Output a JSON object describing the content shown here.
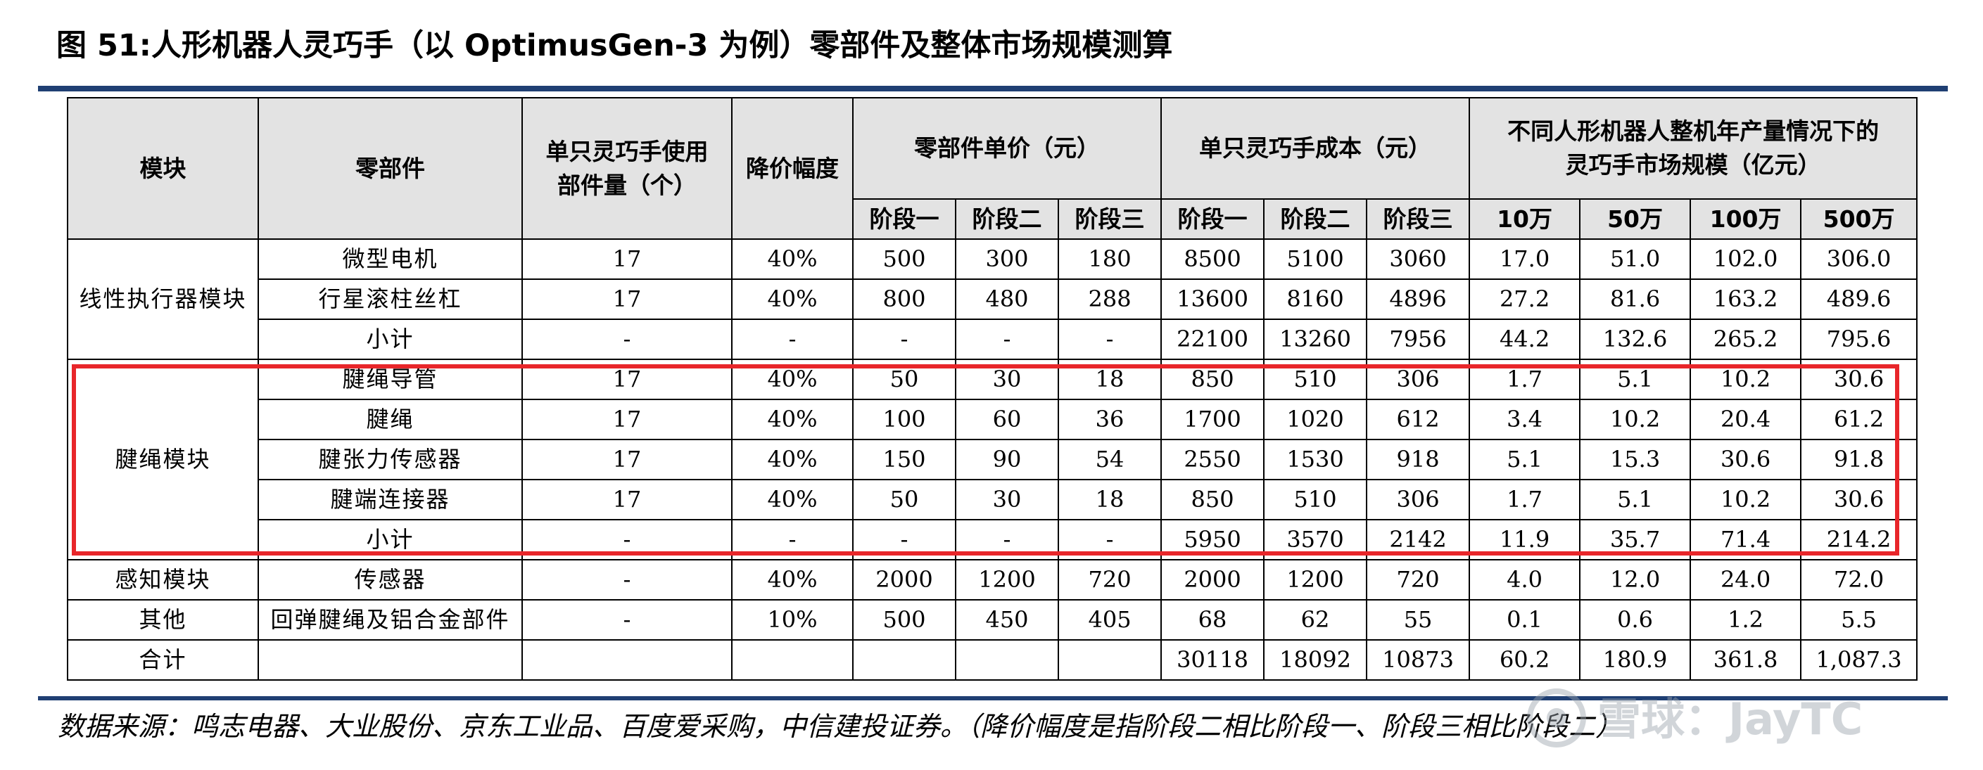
{
  "title": "图 51:人形机器人灵巧手（以 OptimusGen-3 为例）零部件及整体市场规模测算",
  "table": {
    "headers": {
      "module": "模块",
      "part": "零部件",
      "qty": "单只灵巧手使用部件量（个）",
      "discount": "降价幅度",
      "unit_price": "零部件单价（元）",
      "hand_cost": "单只灵巧手成本（元）",
      "market": "不同人形机器人整机年产量情况下的灵巧手市场规模（亿元）",
      "stage1": "阶段一",
      "stage2": "阶段二",
      "stage3": "阶段三",
      "m10": "10万",
      "m50": "50万",
      "m100": "100万",
      "m500": "500万"
    },
    "groups": {
      "linear": "线性执行器模块",
      "tendon": "腱绳模块",
      "sensing": "感知模块",
      "other": "其他",
      "total": "合计"
    },
    "rows": [
      {
        "part": "微型电机",
        "qty": "17",
        "discount": "40%",
        "p1": "500",
        "p2": "300",
        "p3": "180",
        "c1": "8500",
        "c2": "5100",
        "c3": "3060",
        "m10": "17.0",
        "m50": "51.0",
        "m100": "102.0",
        "m500": "306.0"
      },
      {
        "part": "行星滚柱丝杠",
        "qty": "17",
        "discount": "40%",
        "p1": "800",
        "p2": "480",
        "p3": "288",
        "c1": "13600",
        "c2": "8160",
        "c3": "4896",
        "m10": "27.2",
        "m50": "81.6",
        "m100": "163.2",
        "m500": "489.6"
      },
      {
        "part": "小计",
        "qty": "-",
        "discount": "-",
        "p1": "-",
        "p2": "-",
        "p3": "-",
        "c1": "22100",
        "c2": "13260",
        "c3": "7956",
        "m10": "44.2",
        "m50": "132.6",
        "m100": "265.2",
        "m500": "795.6"
      },
      {
        "part": "腱绳导管",
        "qty": "17",
        "discount": "40%",
        "p1": "50",
        "p2": "30",
        "p3": "18",
        "c1": "850",
        "c2": "510",
        "c3": "306",
        "m10": "1.7",
        "m50": "5.1",
        "m100": "10.2",
        "m500": "30.6"
      },
      {
        "part": "腱绳",
        "qty": "17",
        "discount": "40%",
        "p1": "100",
        "p2": "60",
        "p3": "36",
        "c1": "1700",
        "c2": "1020",
        "c3": "612",
        "m10": "3.4",
        "m50": "10.2",
        "m100": "20.4",
        "m500": "61.2"
      },
      {
        "part": "腱张力传感器",
        "qty": "17",
        "discount": "40%",
        "p1": "150",
        "p2": "90",
        "p3": "54",
        "c1": "2550",
        "c2": "1530",
        "c3": "918",
        "m10": "5.1",
        "m50": "15.3",
        "m100": "30.6",
        "m500": "91.8"
      },
      {
        "part": "腱端连接器",
        "qty": "17",
        "discount": "40%",
        "p1": "50",
        "p2": "30",
        "p3": "18",
        "c1": "850",
        "c2": "510",
        "c3": "306",
        "m10": "1.7",
        "m50": "5.1",
        "m100": "10.2",
        "m500": "30.6"
      },
      {
        "part": "小计",
        "qty": "-",
        "discount": "-",
        "p1": "-",
        "p2": "-",
        "p3": "-",
        "c1": "5950",
        "c2": "3570",
        "c3": "2142",
        "m10": "11.9",
        "m50": "35.7",
        "m100": "71.4",
        "m500": "214.2"
      },
      {
        "part": "传感器",
        "qty": "-",
        "discount": "40%",
        "p1": "2000",
        "p2": "1200",
        "p3": "720",
        "c1": "2000",
        "c2": "1200",
        "c3": "720",
        "m10": "4.0",
        "m50": "12.0",
        "m100": "24.0",
        "m500": "72.0"
      },
      {
        "part": "回弹腱绳及铝合金部件",
        "qty": "-",
        "discount": "10%",
        "p1": "500",
        "p2": "450",
        "p3": "405",
        "c1": "68",
        "c2": "62",
        "c3": "55",
        "m10": "0.1",
        "m50": "0.6",
        "m100": "1.2",
        "m500": "5.5"
      },
      {
        "part": "",
        "qty": "",
        "discount": "",
        "p1": "",
        "p2": "",
        "p3": "",
        "c1": "30118",
        "c2": "18092",
        "c3": "10873",
        "m10": "60.2",
        "m50": "180.9",
        "m100": "361.8",
        "m500": "1,087.3"
      }
    ]
  },
  "source": "数据来源：鸣志电器、大业股份、京东工业品、百度爱采购，中信建投证券。（降价幅度是指阶段二相比阶段一、阶段三相比阶段二）",
  "watermark": "雪球：JayTC",
  "colors": {
    "rule": "#1f3f73",
    "highlight_box": "#e8262a",
    "header_bg": "#e3e3e3"
  }
}
